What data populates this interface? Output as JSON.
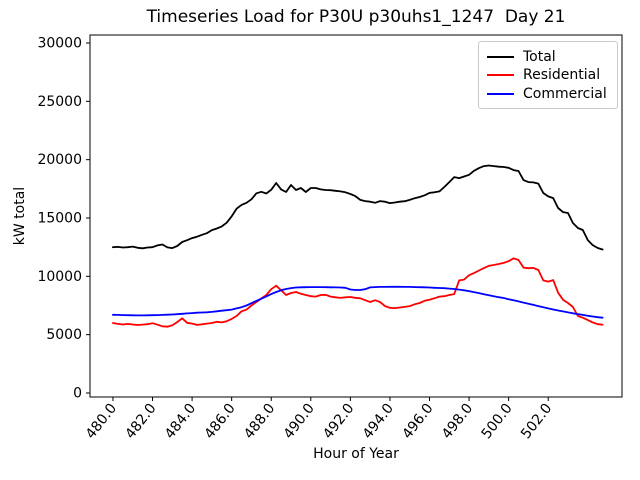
{
  "chart_data": {
    "type": "line",
    "title": "Timeseries Load for P30U p30uhs1_1247  Day 21",
    "xlabel": "Hour of Year",
    "ylabel": "kW total",
    "xlim": [
      478.84,
      505.73
    ],
    "ylim": [
      -343,
      30686
    ],
    "grid": false,
    "x_ticks": [
      480,
      482,
      484,
      486,
      488,
      490,
      492,
      494,
      496,
      498,
      500,
      502
    ],
    "x_tick_labels": [
      "480.0",
      "482.0",
      "484.0",
      "486.0",
      "488.0",
      "490.0",
      "492.0",
      "494.0",
      "496.0",
      "498.0",
      "500.0",
      "502.0"
    ],
    "y_ticks": [
      0,
      5000,
      10000,
      15000,
      20000,
      25000,
      30000
    ],
    "y_tick_labels": [
      "0",
      "5000",
      "10000",
      "15000",
      "20000",
      "25000",
      "30000"
    ],
    "legend": {
      "position": "upper right",
      "entries": [
        "Total",
        "Residential",
        "Commercial"
      ]
    },
    "x": [
      480.0,
      480.25,
      480.5,
      480.75,
      481.0,
      481.25,
      481.5,
      481.75,
      482.0,
      482.25,
      482.5,
      482.75,
      483.0,
      483.25,
      483.5,
      483.75,
      484.0,
      484.25,
      484.5,
      484.75,
      485.0,
      485.25,
      485.5,
      485.75,
      486.0,
      486.25,
      486.5,
      486.75,
      487.0,
      487.25,
      487.5,
      487.75,
      488.0,
      488.25,
      488.5,
      488.75,
      489.0,
      489.25,
      489.5,
      489.75,
      490.0,
      490.25,
      490.5,
      490.75,
      491.0,
      491.25,
      491.5,
      491.75,
      492.0,
      492.25,
      492.5,
      492.75,
      493.0,
      493.25,
      493.5,
      493.75,
      494.0,
      494.25,
      494.5,
      494.75,
      495.0,
      495.25,
      495.5,
      495.75,
      496.0,
      496.25,
      496.5,
      496.75,
      497.0,
      497.25,
      497.5,
      497.75,
      498.0,
      498.25,
      498.5,
      498.75,
      499.0,
      499.25,
      499.5,
      499.75,
      500.0,
      500.25,
      500.5,
      500.75,
      501.0,
      501.25,
      501.5,
      501.75,
      502.0,
      502.25,
      502.5,
      502.75,
      503.0,
      503.25,
      503.5,
      503.75,
      504.0,
      504.25,
      504.5,
      504.75
    ],
    "series": [
      {
        "name": "Total",
        "color": "#000000",
        "values": [
          12500,
          12520,
          12470,
          12500,
          12550,
          12450,
          12400,
          12470,
          12500,
          12650,
          12730,
          12480,
          12420,
          12600,
          12940,
          13100,
          13280,
          13400,
          13560,
          13700,
          13960,
          14100,
          14280,
          14600,
          15150,
          15800,
          16120,
          16300,
          16600,
          17120,
          17250,
          17100,
          17420,
          18000,
          17450,
          17230,
          17830,
          17400,
          17570,
          17230,
          17570,
          17570,
          17450,
          17400,
          17380,
          17330,
          17280,
          17200,
          17060,
          16880,
          16550,
          16450,
          16400,
          16300,
          16450,
          16400,
          16280,
          16330,
          16400,
          16440,
          16550,
          16700,
          16800,
          16950,
          17150,
          17200,
          17280,
          17660,
          18080,
          18510,
          18420,
          18560,
          18700,
          19050,
          19280,
          19450,
          19500,
          19450,
          19400,
          19370,
          19300,
          19110,
          19030,
          18250,
          18080,
          18050,
          17950,
          17140,
          16850,
          16710,
          15860,
          15510,
          15430,
          14570,
          14140,
          13970,
          13110,
          12680,
          12430,
          12300
        ]
      },
      {
        "name": "Residential",
        "color": "#ff0000",
        "values": [
          6000,
          5920,
          5870,
          5920,
          5870,
          5830,
          5860,
          5900,
          5980,
          5850,
          5720,
          5680,
          5800,
          6080,
          6400,
          6020,
          5950,
          5840,
          5890,
          5950,
          6000,
          6100,
          6050,
          6150,
          6350,
          6600,
          7000,
          7150,
          7500,
          7800,
          8100,
          8400,
          8900,
          9200,
          8800,
          8400,
          8570,
          8660,
          8500,
          8400,
          8300,
          8260,
          8400,
          8420,
          8260,
          8200,
          8150,
          8200,
          8230,
          8160,
          8120,
          7950,
          7800,
          7950,
          7800,
          7450,
          7300,
          7280,
          7330,
          7380,
          7450,
          7600,
          7710,
          7900,
          8000,
          8120,
          8260,
          8300,
          8400,
          8480,
          9650,
          9720,
          10100,
          10280,
          10500,
          10710,
          10900,
          10970,
          11060,
          11150,
          11300,
          11550,
          11400,
          10750,
          10700,
          10720,
          10540,
          9650,
          9550,
          9680,
          8600,
          8000,
          7710,
          7370,
          6600,
          6450,
          6250,
          6050,
          5900,
          5850
        ]
      },
      {
        "name": "Commercial",
        "color": "#0000ff",
        "values": [
          6700,
          6690,
          6680,
          6670,
          6660,
          6655,
          6655,
          6660,
          6665,
          6675,
          6690,
          6710,
          6730,
          6755,
          6785,
          6820,
          6850,
          6880,
          6900,
          6920,
          6950,
          7000,
          7050,
          7100,
          7150,
          7250,
          7350,
          7500,
          7700,
          7890,
          8080,
          8280,
          8480,
          8660,
          8800,
          8910,
          8990,
          9040,
          9060,
          9070,
          9080,
          9080,
          9080,
          9070,
          9060,
          9050,
          9040,
          9020,
          8870,
          8830,
          8830,
          8900,
          9050,
          9080,
          9090,
          9090,
          9100,
          9100,
          9100,
          9090,
          9090,
          9080,
          9070,
          9060,
          9040,
          9020,
          9000,
          8980,
          8950,
          8910,
          8860,
          8800,
          8730,
          8650,
          8560,
          8470,
          8380,
          8290,
          8210,
          8140,
          8040,
          7950,
          7850,
          7750,
          7650,
          7550,
          7450,
          7350,
          7250,
          7160,
          7070,
          6990,
          6910,
          6830,
          6760,
          6690,
          6620,
          6560,
          6500,
          6450
        ]
      }
    ]
  }
}
